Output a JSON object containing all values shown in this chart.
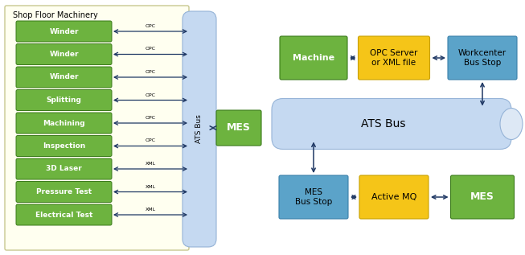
{
  "bg_color": "#ffffff",
  "left_panel_bg": "#fffff0",
  "left_panel_border": "#c8c890",
  "machine_boxes": [
    "Winder",
    "Winder",
    "Winder",
    "Splitting",
    "Machining",
    "Inspection",
    "3D Laser",
    "Pressure Test",
    "Electrical Test"
  ],
  "machine_protocols": [
    "OPC",
    "OPC",
    "OPC",
    "OPC",
    "OPC",
    "OPC",
    "XML",
    "XML",
    "XML"
  ],
  "green_color": "#6db33f",
  "yellow_color": "#f5c518",
  "blue_color": "#5ba3c9",
  "bus_color": "#c5d9f1",
  "bus_border": "#95b3d7",
  "arrow_color": "#1f3864",
  "panel_label": "Shop Floor Machinery"
}
